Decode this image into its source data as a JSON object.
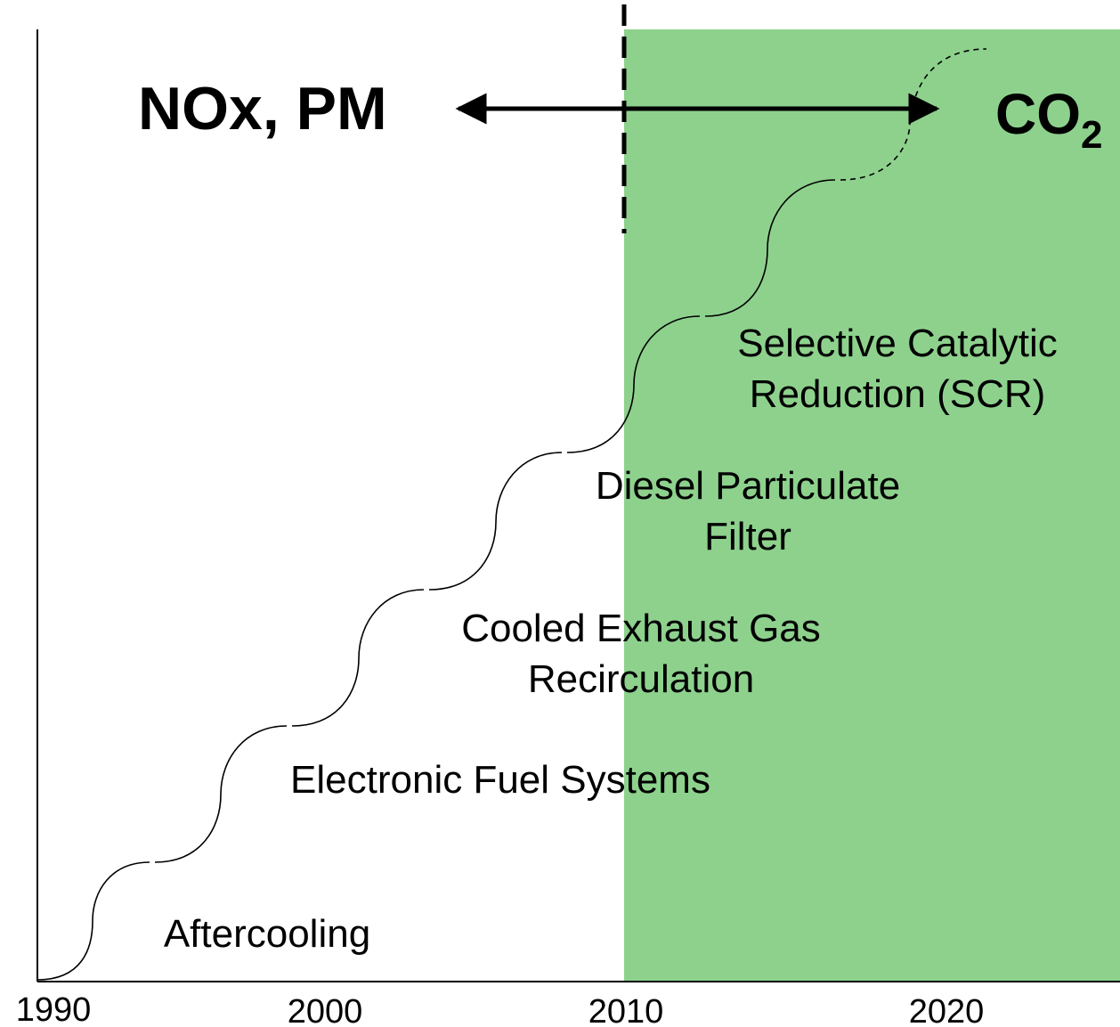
{
  "left_label": "NOx, PM",
  "right_label": {
    "text": "CO",
    "subscript": "2"
  },
  "technologies": [
    {
      "lines": [
        "Aftercooling"
      ]
    },
    {
      "lines": [
        "Electronic Fuel Systems"
      ]
    },
    {
      "lines": [
        "Cooled Exhaust Gas",
        "Recirculation"
      ]
    },
    {
      "lines": [
        "Diesel Particulate",
        "Filter"
      ]
    },
    {
      "lines": [
        "Selective Catalytic",
        "Reduction (SCR)"
      ]
    }
  ],
  "axis_labels": [
    "1990",
    "2000",
    "2010",
    "2020"
  ]
}
